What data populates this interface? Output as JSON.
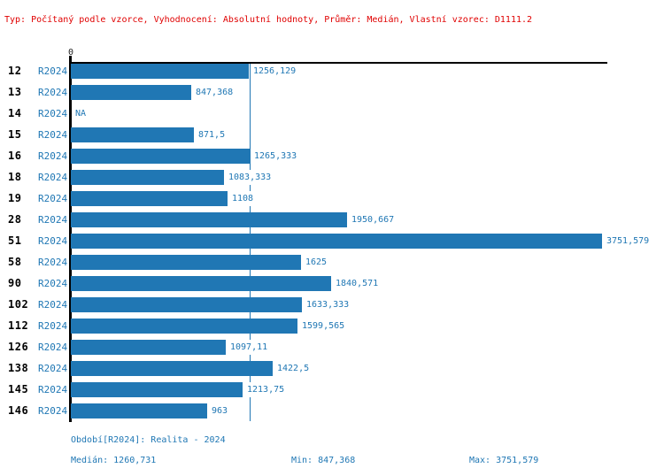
{
  "title": "Typ: Počítaný podle vzorce, Vyhodnocení: Absolutní hodnoty, Průměr: Medián, Vlastní vzorec: D1111.2",
  "axis": {
    "zero_label": "0"
  },
  "colors": {
    "bar": "#2077b4",
    "text_blue": "#1f77b4",
    "title_red": "#e00000",
    "axis": "#000000"
  },
  "chart_data": {
    "type": "bar",
    "orientation": "horizontal",
    "title": "Typ: Počítaný podle vzorce, Vyhodnocení: Absolutní hodnoty, Průměr: Medián, Vlastní vzorec: D1111.2",
    "categories": [
      "12",
      "13",
      "14",
      "15",
      "16",
      "18",
      "19",
      "28",
      "51",
      "58",
      "90",
      "102",
      "112",
      "126",
      "138",
      "145",
      "146"
    ],
    "series": [
      {
        "name": "R2024",
        "values": [
          1256.129,
          847.368,
          null,
          871.5,
          1265.333,
          1083.333,
          1108,
          1950.667,
          3751.579,
          1625,
          1840.571,
          1633.333,
          1599.565,
          1097.11,
          1422.5,
          1213.75,
          963
        ]
      }
    ],
    "value_labels": [
      "1256,129",
      "847,368",
      "NA",
      "871,5",
      "1265,333",
      "1083,333",
      "1108",
      "1950,667",
      "3751,579",
      "1625",
      "1840,571",
      "1633,333",
      "1599,565",
      "1097,11",
      "1422,5",
      "1213,75",
      "963"
    ],
    "xlim": [
      0,
      3751.579
    ],
    "median_value": 1260.731,
    "grid": false,
    "legend": false
  },
  "footer": {
    "period": "Období[R2024]: Realita - 2024",
    "median": "Medián: 1260,731",
    "min": "Min: 847,368",
    "max": "Max: 3751,579"
  }
}
